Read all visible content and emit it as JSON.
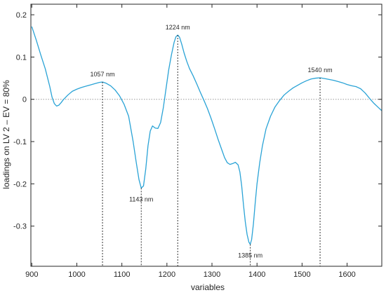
{
  "colors": {
    "series": "#2aa3d6",
    "axis": "#262626",
    "zero_line": "#9a9a9a",
    "drop_line": "#333333"
  },
  "chart_data": {
    "type": "line",
    "title": "",
    "xlabel": "variables",
    "ylabel": "loadings on LV 2 – EV = 80%",
    "xlim": [
      898,
      1677
    ],
    "ylim": [
      -0.395,
      0.225
    ],
    "xticks": [
      900,
      1000,
      1100,
      1200,
      1300,
      1400,
      1500,
      1600
    ],
    "xtick_labels": [
      "900",
      "1000",
      "1100",
      "1200",
      "1300",
      "1400",
      "1500",
      "1600"
    ],
    "yticks": [
      0.2,
      0.1,
      0,
      -0.1,
      -0.2,
      -0.3
    ],
    "ytick_labels": [
      "0.2",
      "0.1",
      "0",
      "-0.1",
      "-0.2",
      "-0.3"
    ],
    "grid": false,
    "zero_line": true,
    "series": [
      {
        "x": [
          900,
          910,
          920,
          930,
          940,
          945,
          950,
          955,
          960,
          965,
          970,
          980,
          990,
          1000,
          1010,
          1020,
          1030,
          1040,
          1050,
          1057,
          1065,
          1075,
          1085,
          1095,
          1105,
          1115,
          1125,
          1132,
          1138,
          1143,
          1148,
          1153,
          1158,
          1163,
          1168,
          1174,
          1180,
          1186,
          1192,
          1198,
          1204,
          1210,
          1216,
          1220,
          1224,
          1228,
          1233,
          1238,
          1244,
          1250,
          1258,
          1266,
          1274,
          1282,
          1290,
          1298,
          1306,
          1314,
          1322,
          1328,
          1334,
          1340,
          1346,
          1352,
          1358,
          1362,
          1366,
          1370,
          1374,
          1378,
          1382,
          1385,
          1388,
          1392,
          1396,
          1400,
          1406,
          1412,
          1420,
          1430,
          1440,
          1450,
          1460,
          1470,
          1480,
          1490,
          1500,
          1510,
          1520,
          1530,
          1540,
          1550,
          1560,
          1570,
          1580,
          1590,
          1600,
          1610,
          1620,
          1630,
          1640,
          1650,
          1660,
          1670,
          1677
        ],
        "y": [
          0.172,
          0.14,
          0.105,
          0.072,
          0.03,
          0.005,
          -0.01,
          -0.016,
          -0.014,
          -0.008,
          -0.001,
          0.01,
          0.019,
          0.024,
          0.028,
          0.031,
          0.034,
          0.037,
          0.04,
          0.041,
          0.038,
          0.032,
          0.022,
          0.008,
          -0.012,
          -0.04,
          -0.1,
          -0.15,
          -0.19,
          -0.21,
          -0.205,
          -0.165,
          -0.11,
          -0.075,
          -0.063,
          -0.068,
          -0.069,
          -0.055,
          -0.02,
          0.025,
          0.07,
          0.105,
          0.135,
          0.148,
          0.152,
          0.147,
          0.13,
          0.11,
          0.09,
          0.073,
          0.056,
          0.037,
          0.017,
          -0.002,
          -0.022,
          -0.045,
          -0.07,
          -0.096,
          -0.12,
          -0.138,
          -0.15,
          -0.154,
          -0.152,
          -0.149,
          -0.155,
          -0.172,
          -0.205,
          -0.25,
          -0.29,
          -0.32,
          -0.338,
          -0.343,
          -0.332,
          -0.295,
          -0.245,
          -0.2,
          -0.15,
          -0.11,
          -0.07,
          -0.04,
          -0.018,
          -0.003,
          0.01,
          0.019,
          0.027,
          0.033,
          0.039,
          0.044,
          0.048,
          0.05,
          0.051,
          0.049,
          0.047,
          0.045,
          0.042,
          0.039,
          0.035,
          0.032,
          0.03,
          0.025,
          0.015,
          0.002,
          -0.01,
          -0.02,
          -0.027
        ]
      }
    ],
    "annotations": [
      {
        "text": "1057 nm",
        "x": 1057,
        "y": 0.041,
        "label_side": "above"
      },
      {
        "text": "1143 nm",
        "x": 1143,
        "y": -0.21,
        "label_side": "below"
      },
      {
        "text": "1224 nm",
        "x": 1224,
        "y": 0.152,
        "label_side": "above"
      },
      {
        "text": "1385 nm",
        "x": 1385,
        "y": -0.343,
        "label_side": "below"
      },
      {
        "text": "1540 nm",
        "x": 1540,
        "y": 0.051,
        "label_side": "above"
      }
    ]
  }
}
